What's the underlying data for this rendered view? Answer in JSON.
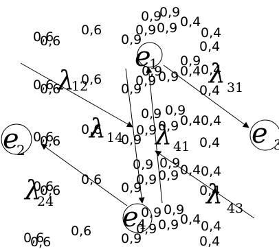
{
  "colors": {
    "ink": "#000000",
    "background": "#ffffff"
  },
  "nodes": [
    {
      "id": "e1",
      "letter": "e",
      "sub": "1"
    },
    {
      "id": "e2",
      "letter": "e",
      "sub": "2"
    },
    {
      "id": "e3",
      "letter": "e",
      "sub": "3"
    },
    {
      "id": "e4",
      "letter": "e",
      "sub": "4"
    }
  ],
  "edges": [
    {
      "id": "l12",
      "from": "e1",
      "to": "e2",
      "letter": "λ",
      "sub": "12"
    },
    {
      "id": "l14",
      "from": "e1",
      "to": "e4",
      "letter": "λ",
      "sub": "14"
    },
    {
      "id": "l31",
      "from": "e1",
      "to": "e3",
      "letter": "λ",
      "sub": "31"
    },
    {
      "id": "l41",
      "from": "e4",
      "to": "e1",
      "letter": "λ",
      "sub": "41"
    },
    {
      "id": "l24",
      "from": "e4",
      "to": "e2",
      "letter": "λ",
      "sub": "24"
    },
    {
      "id": "l43",
      "from": "e3",
      "to": "e4",
      "letter": "λ",
      "sub": "43"
    }
  ],
  "weight_labels": {
    "left_column": [
      "0,6",
      "0,6",
      "0,6"
    ],
    "center_column": [
      "0,9",
      "0,9",
      "0,9",
      "0,4",
      "0,4"
    ]
  }
}
